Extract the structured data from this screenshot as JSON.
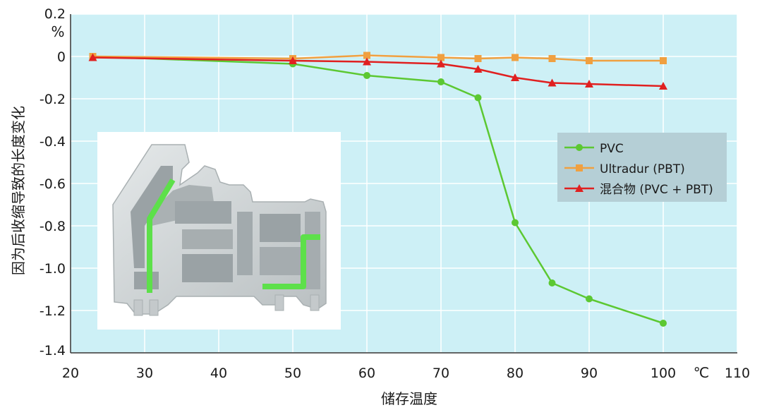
{
  "chart_data": {
    "type": "line",
    "xlabel": "储存温度",
    "ylabel": "因为后收缩导致的长度变化",
    "y_unit": "%",
    "x_unit": "℃",
    "xlim": [
      20,
      110
    ],
    "ylim": [
      -1.4,
      0.2
    ],
    "x_ticks": [
      "20",
      "30",
      "40",
      "50",
      "60",
      "70",
      "80",
      "90",
      "100",
      "110"
    ],
    "y_ticks": [
      "0.2",
      "0",
      "-0.2",
      "-0.4",
      "-0.6",
      "-0.8",
      "-1.0",
      "-1.2",
      "-1.4"
    ],
    "grid": true,
    "legend_position": "right",
    "series": [
      {
        "name": "PVC",
        "color": "#5cc832",
        "marker": "circle",
        "x": [
          23,
          50,
          60,
          70,
          75,
          80,
          85,
          90,
          100
        ],
        "y": [
          0.0,
          -0.035,
          -0.09,
          -0.12,
          -0.195,
          -0.785,
          -1.07,
          -1.145,
          -1.26
        ]
      },
      {
        "name": "Ultradur (PBT)",
        "color": "#f0a040",
        "marker": "square",
        "x": [
          23,
          50,
          60,
          70,
          75,
          80,
          85,
          90,
          100
        ],
        "y": [
          0.0,
          -0.01,
          0.005,
          -0.005,
          -0.01,
          -0.005,
          -0.01,
          -0.02,
          -0.02
        ]
      },
      {
        "name": "混合物 (PVC + PBT)",
        "color": "#e02020",
        "marker": "triangle",
        "x": [
          23,
          50,
          60,
          70,
          75,
          80,
          85,
          90,
          100
        ],
        "y": [
          -0.005,
          -0.02,
          -0.025,
          -0.035,
          -0.06,
          -0.1,
          -0.125,
          -0.13,
          -0.14
        ]
      }
    ]
  },
  "colors": {
    "plot_background": "#cdf0f6",
    "grid": "#ffffff",
    "legend_background": "#b5cfd6",
    "inset_background": "#ffffff",
    "profile_body": "#d0d5d6",
    "profile_highlight": "#5de04a"
  },
  "inset": {
    "description_icon": "window-profile-cross-section"
  }
}
